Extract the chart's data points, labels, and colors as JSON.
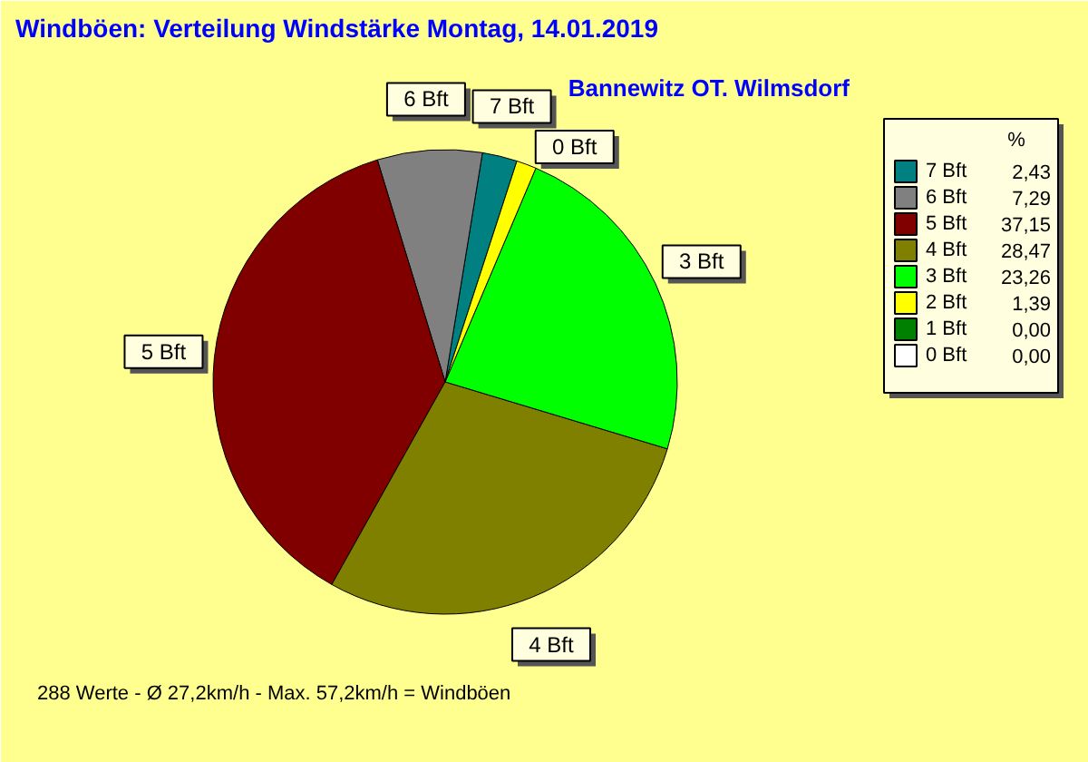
{
  "chart_data": {
    "type": "pie",
    "title": "Windböen: Verteilung Windstärke  Montag, 14.01.2019",
    "subtitle": "Bannewitz OT. Wilmsdorf",
    "legend_title": "%",
    "legend": "right",
    "categories": [
      "7 Bft",
      "6 Bft",
      "5 Bft",
      "4 Bft",
      "3 Bft",
      "2 Bft",
      "1 Bft",
      "0 Bft"
    ],
    "values": [
      2.43,
      7.29,
      37.15,
      28.47,
      23.26,
      1.39,
      0.0,
      0.0
    ],
    "value_labels": [
      "2,43",
      "7,29",
      "37,15",
      "28,47",
      "23,26",
      "1,39",
      "0,00",
      "0,00"
    ],
    "colors": [
      "#008080",
      "#808080",
      "#800000",
      "#808000",
      "#00ff00",
      "#ffff00",
      "#008000",
      "#ffffff"
    ],
    "annotations": [
      {
        "text": "7 Bft",
        "x": "7 Bft"
      },
      {
        "text": "6 Bft",
        "x": "6 Bft"
      },
      {
        "text": "5 Bft",
        "x": "5 Bft"
      },
      {
        "text": "4 Bft",
        "x": "4 Bft"
      },
      {
        "text": "3 Bft",
        "x": "3 Bft"
      },
      {
        "text": "0 Bft",
        "x": "2 Bft"
      },
      "288 Werte   -   Ø 27,2km/h  -  Max. 57,2km/h = Windböen"
    ]
  }
}
